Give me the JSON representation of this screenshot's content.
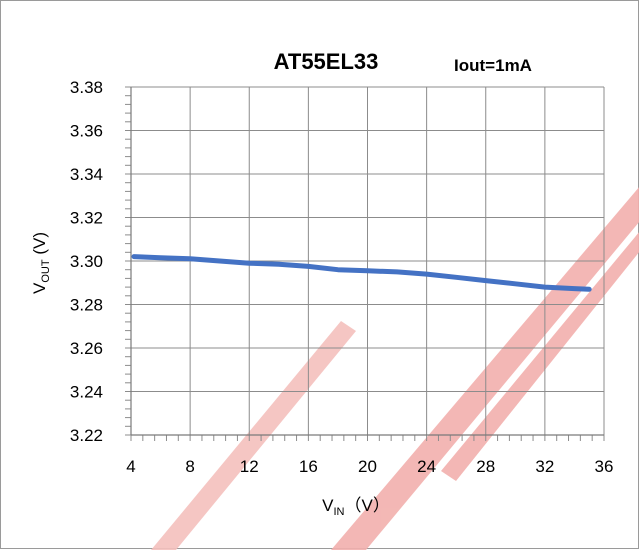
{
  "chart_data": {
    "type": "line",
    "title": "AT55EL33",
    "condition": "Iout=1mA",
    "xlabel": {
      "main": "V",
      "sub": "IN",
      "unit": "（V）"
    },
    "ylabel": {
      "main": "V",
      "sub": "OUT",
      "unit": " (V)"
    },
    "xlim": [
      4,
      36
    ],
    "ylim": [
      3.22,
      3.38
    ],
    "xticks": [
      4,
      8,
      12,
      16,
      20,
      24,
      28,
      32,
      36
    ],
    "yticks": [
      "3.22",
      "3.24",
      "3.26",
      "3.28",
      "3.30",
      "3.32",
      "3.34",
      "3.36",
      "3.38"
    ],
    "grid": true,
    "line_color": "#4472c4",
    "series": [
      {
        "x": [
          4.2,
          6,
          8,
          10,
          12,
          14,
          16,
          18,
          20,
          22,
          24,
          26,
          28,
          30,
          32,
          34,
          35
        ],
        "y": [
          3.302,
          3.3015,
          3.301,
          3.3,
          3.299,
          3.2985,
          3.2975,
          3.296,
          3.2955,
          3.295,
          3.294,
          3.2925,
          3.291,
          3.2895,
          3.288,
          3.2873,
          3.287
        ]
      }
    ]
  }
}
